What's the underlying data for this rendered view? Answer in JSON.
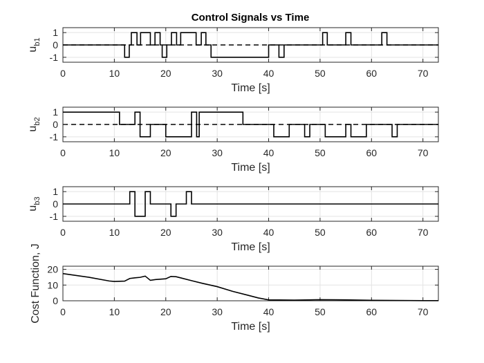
{
  "figure": {
    "title": "Control Signals vs Time"
  },
  "chart_data": [
    {
      "type": "line",
      "subtype": "step",
      "xlabel": "Time [s]",
      "ylabel_main": "u",
      "ylabel_sub": "b1",
      "xlim": [
        0,
        73
      ],
      "ylim": [
        -1.4,
        1.4
      ],
      "xticks": [
        0,
        10,
        20,
        30,
        40,
        50,
        60,
        70
      ],
      "yticks": [
        -1,
        0,
        1
      ],
      "grid": true,
      "zero_dashed": true,
      "series": [
        {
          "x": [
            0,
            12,
            12,
            12.9,
            12.9,
            13.3,
            13.3,
            14.4,
            14.4,
            15.1,
            15.1,
            17,
            17,
            17.9,
            17.9,
            18.9,
            18.9,
            19.3,
            19.3,
            20.2,
            20.2,
            21.1,
            21.1,
            22.1,
            22.1,
            22.9,
            22.9,
            25.9,
            25.9,
            26.9,
            26.9,
            27.8,
            27.8,
            28.8,
            28.8,
            40,
            40,
            42,
            42,
            43,
            43,
            50.5,
            50.5,
            51.4,
            51.4,
            55,
            55,
            56,
            56,
            62,
            62,
            63,
            63,
            73
          ],
          "y": [
            0,
            0,
            -1,
            -1,
            0,
            0,
            1,
            1,
            0,
            0,
            1,
            1,
            0,
            0,
            1,
            1,
            0,
            0,
            -1,
            -1,
            0,
            0,
            1,
            1,
            0,
            0,
            1,
            1,
            0,
            0,
            1,
            1,
            0,
            0,
            -1,
            -1,
            0,
            0,
            -1,
            -1,
            0,
            0,
            1,
            1,
            0,
            0,
            1,
            1,
            0,
            0,
            1,
            1,
            0,
            0
          ]
        }
      ]
    },
    {
      "type": "line",
      "subtype": "step",
      "xlabel": "Time [s]",
      "ylabel_main": "u",
      "ylabel_sub": "b2",
      "xlim": [
        0,
        73
      ],
      "ylim": [
        -1.4,
        1.4
      ],
      "xticks": [
        0,
        10,
        20,
        30,
        40,
        50,
        60,
        70
      ],
      "yticks": [
        -1,
        0,
        1
      ],
      "grid": true,
      "zero_dashed": true,
      "series": [
        {
          "x": [
            0,
            11,
            11,
            14,
            14,
            15,
            15,
            17,
            17,
            20,
            20,
            25,
            25,
            26,
            26,
            26.5,
            26.5,
            27.5,
            27.5,
            35,
            35,
            41,
            41,
            44,
            44,
            47,
            47,
            48,
            48,
            51,
            51,
            55,
            55,
            56,
            56,
            59,
            59,
            64,
            64,
            65,
            65,
            73
          ],
          "y": [
            1,
            1,
            0,
            0,
            1,
            1,
            -1,
            -1,
            0,
            0,
            -1,
            -1,
            1,
            1,
            -1,
            -1,
            1,
            1,
            1,
            1,
            0,
            0,
            -1,
            -1,
            0,
            0,
            -1,
            -1,
            0,
            0,
            -1,
            -1,
            0,
            0,
            -1,
            -1,
            0,
            0,
            -1,
            -1,
            0,
            0
          ]
        }
      ]
    },
    {
      "type": "line",
      "subtype": "step",
      "xlabel": "Time [s]",
      "ylabel_main": "u",
      "ylabel_sub": "b3",
      "xlim": [
        0,
        73
      ],
      "ylim": [
        -1.4,
        1.4
      ],
      "xticks": [
        0,
        10,
        20,
        30,
        40,
        50,
        60,
        70
      ],
      "yticks": [
        -1,
        0,
        1
      ],
      "grid": true,
      "zero_dashed": false,
      "series": [
        {
          "x": [
            0,
            13,
            13,
            14,
            14,
            16,
            16,
            17,
            17,
            21,
            21,
            22,
            22,
            24,
            24,
            25,
            25,
            73
          ],
          "y": [
            0,
            0,
            1,
            1,
            -1,
            -1,
            1,
            1,
            0,
            0,
            -1,
            -1,
            0,
            0,
            1,
            1,
            0,
            0
          ]
        }
      ]
    },
    {
      "type": "line",
      "xlabel": "Time [s]",
      "ylabel": "Cost Function, J",
      "xlim": [
        0,
        73
      ],
      "ylim": [
        0,
        22
      ],
      "xticks": [
        0,
        10,
        20,
        30,
        40,
        50,
        60,
        70
      ],
      "yticks": [
        0,
        10,
        20
      ],
      "grid": true,
      "series": [
        {
          "x": [
            0,
            5,
            9,
            10,
            12,
            13,
            14,
            15,
            16,
            17,
            18,
            20,
            21,
            22,
            23,
            25,
            27,
            30,
            33,
            36,
            38,
            40,
            42,
            45,
            50,
            55,
            60,
            65,
            70,
            73
          ],
          "y": [
            17.3,
            15,
            12.6,
            12.3,
            12.5,
            14.2,
            14.6,
            14.9,
            15.7,
            13,
            13.5,
            14,
            15.5,
            15.3,
            14.5,
            12.8,
            11.2,
            9,
            6,
            3.5,
            1.8,
            0.6,
            0.5,
            0.4,
            0.7,
            0.6,
            0.3,
            0.2,
            0.1,
            0.1
          ]
        }
      ]
    }
  ]
}
